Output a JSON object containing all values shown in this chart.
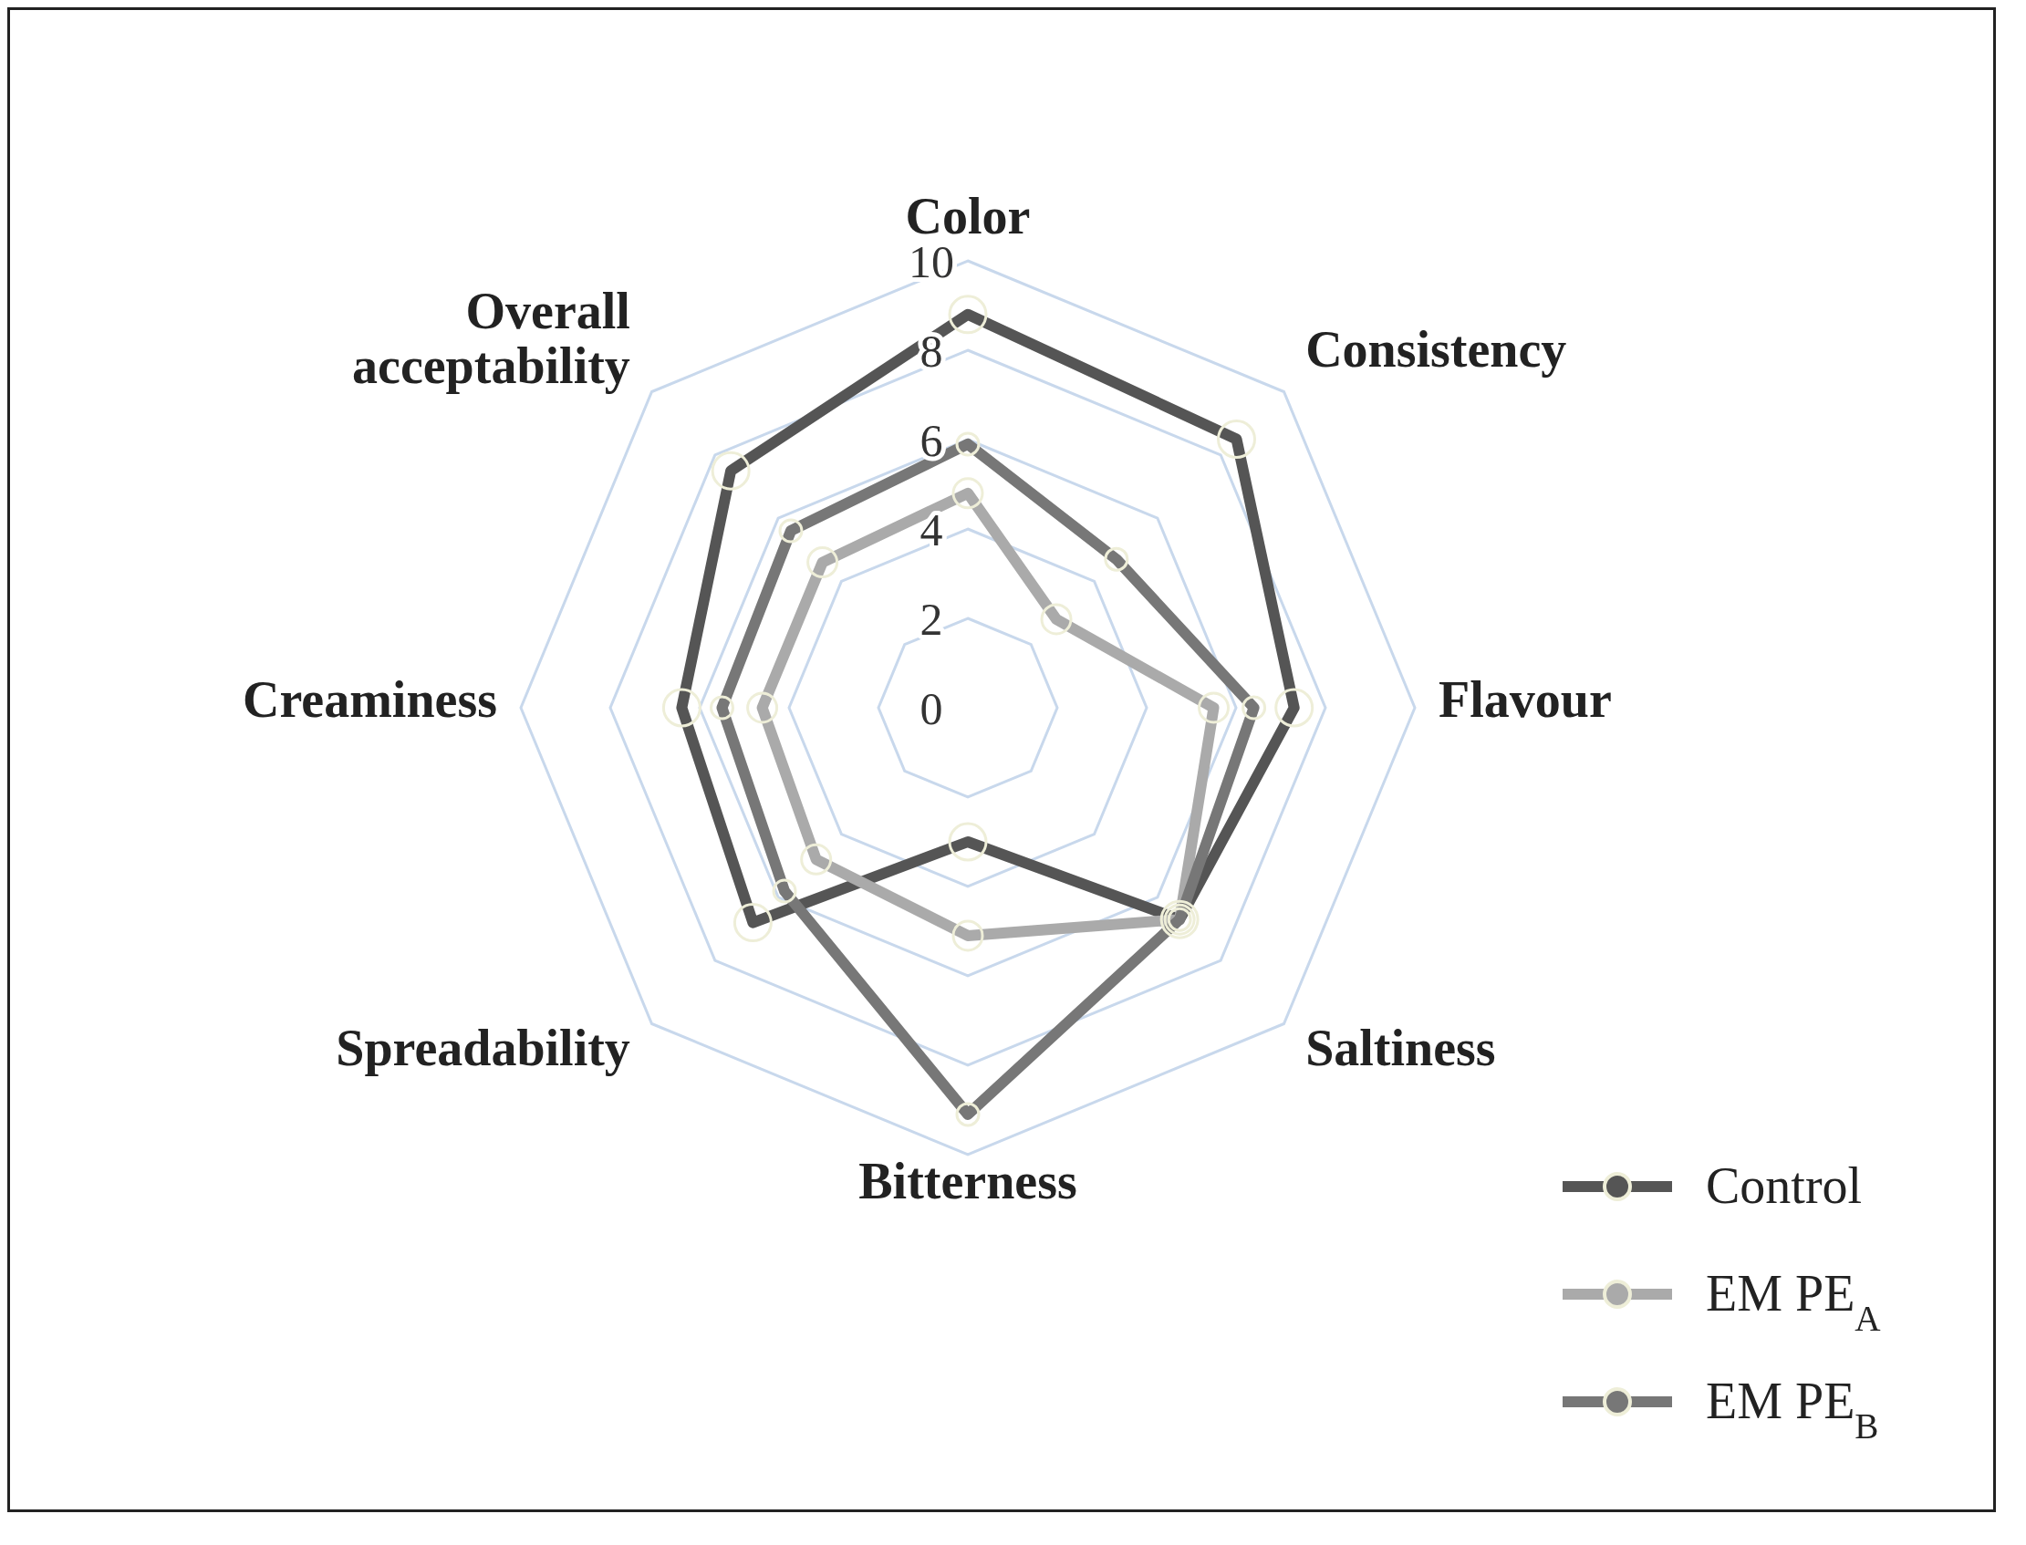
{
  "chart_data": {
    "type": "radar",
    "categories": [
      "Color",
      "Consistency",
      "Flavour",
      "Saltiness",
      "Bitterness",
      "Spreadability",
      "Creaminess",
      "Overall acceptability"
    ],
    "series": [
      {
        "name": "Control",
        "color": "#555555",
        "values": [
          8.8,
          8.5,
          7.3,
          6.7,
          3.0,
          6.8,
          6.4,
          7.5
        ]
      },
      {
        "name": "EM PE$_{A}$",
        "color": "#aaaaaa",
        "values": [
          4.8,
          2.8,
          5.5,
          6.7,
          5.1,
          4.8,
          4.6,
          4.6
        ]
      },
      {
        "name": "EM PE$_{B}$",
        "color": "#777777",
        "values": [
          5.9,
          4.7,
          6.4,
          6.7,
          9.1,
          5.8,
          5.5,
          5.6
        ]
      }
    ],
    "ylim": [
      0,
      10
    ],
    "yticks": [
      0,
      2,
      4,
      6,
      8,
      10
    ],
    "grid": true,
    "legend": "bottom right",
    "marker": "circle",
    "line_style": "solid"
  }
}
